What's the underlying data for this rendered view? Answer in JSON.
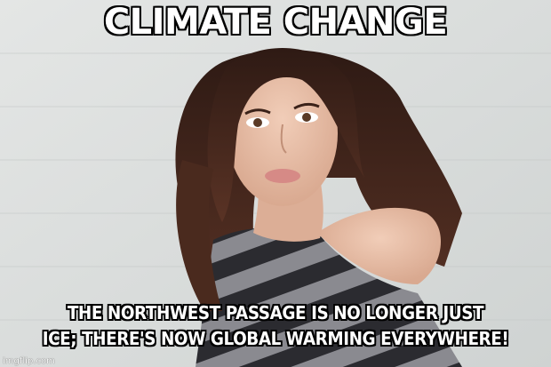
{
  "meme": {
    "top_text": "CLIMATE CHANGE",
    "bottom_line1": "THE NORTHWEST PASSAGE IS NO LONGER JUST",
    "bottom_line2": "ICE; THERE'S NOW GLOBAL WARMING EVERYWHERE!",
    "watermark": "imgflip.com"
  },
  "colors": {
    "background_wall": "#d9dcdb",
    "hair": "#3b2219",
    "skin": "#e9c1aa",
    "shirt_dark": "#2b2b30",
    "shirt_light": "#8a8a90",
    "caption_fill": "#ffffff",
    "caption_outline": "#000000"
  }
}
